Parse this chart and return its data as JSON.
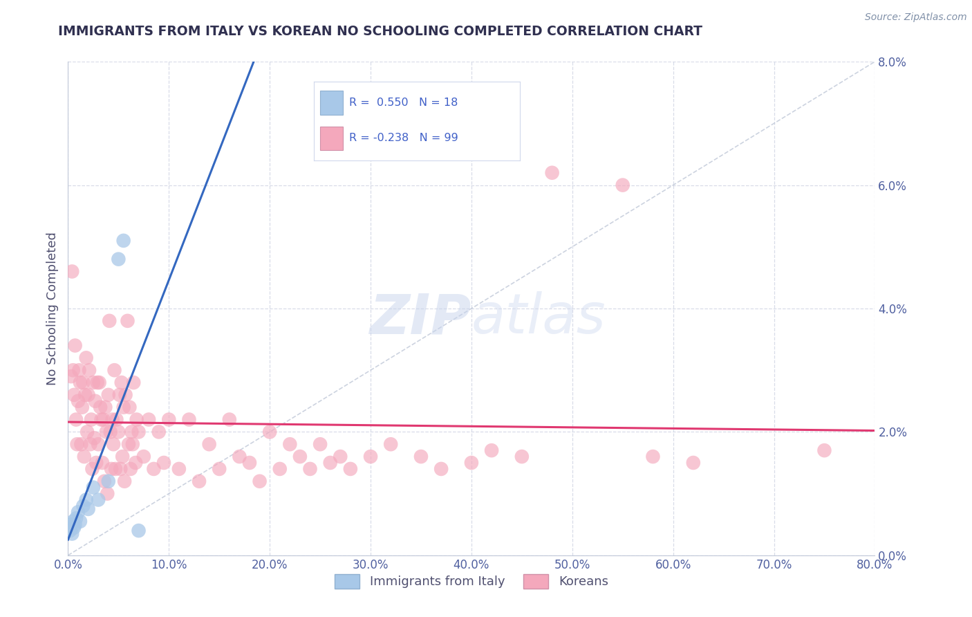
{
  "title": "IMMIGRANTS FROM ITALY VS KOREAN NO SCHOOLING COMPLETED CORRELATION CHART",
  "source": "Source: ZipAtlas.com",
  "xlabel_ticks": [
    0.0,
    10.0,
    20.0,
    30.0,
    40.0,
    50.0,
    60.0,
    70.0,
    80.0
  ],
  "ylabel_ticks": [
    0.0,
    2.0,
    4.0,
    6.0,
    8.0
  ],
  "xlim": [
    0.0,
    80.0
  ],
  "ylim": [
    0.0,
    8.0
  ],
  "ylabel": "No Schooling Completed",
  "legend_italy_label": "Immigrants from Italy",
  "legend_korean_label": "Koreans",
  "italy_R": "0.550",
  "italy_N": "18",
  "korean_R": "-0.238",
  "korean_N": "99",
  "italy_color": "#a8c8e8",
  "korean_color": "#f4a8bc",
  "italy_line_color": "#3468c0",
  "korean_line_color": "#e03870",
  "ref_line_color": "#c0c8d8",
  "background_color": "#ffffff",
  "grid_color": "#d8dce8",
  "title_color": "#303050",
  "watermark_color": "#c8d4ec",
  "italy_scatter": [
    [
      0.2,
      0.4
    ],
    [
      0.3,
      0.5
    ],
    [
      0.4,
      0.35
    ],
    [
      0.5,
      0.55
    ],
    [
      0.6,
      0.45
    ],
    [
      0.7,
      0.5
    ],
    [
      0.8,
      0.6
    ],
    [
      1.0,
      0.7
    ],
    [
      1.2,
      0.55
    ],
    [
      1.5,
      0.8
    ],
    [
      1.8,
      0.9
    ],
    [
      2.0,
      0.75
    ],
    [
      2.5,
      1.1
    ],
    [
      3.0,
      0.9
    ],
    [
      4.0,
      1.2
    ],
    [
      5.0,
      4.8
    ],
    [
      5.5,
      5.1
    ],
    [
      7.0,
      0.4
    ]
  ],
  "korean_scatter": [
    [
      0.3,
      2.9
    ],
    [
      0.4,
      4.6
    ],
    [
      0.5,
      3.0
    ],
    [
      0.6,
      2.6
    ],
    [
      0.7,
      3.4
    ],
    [
      0.8,
      2.2
    ],
    [
      0.9,
      1.8
    ],
    [
      1.0,
      2.5
    ],
    [
      1.1,
      3.0
    ],
    [
      1.2,
      2.8
    ],
    [
      1.3,
      1.8
    ],
    [
      1.4,
      2.4
    ],
    [
      1.5,
      2.8
    ],
    [
      1.6,
      1.6
    ],
    [
      1.7,
      2.6
    ],
    [
      1.8,
      3.2
    ],
    [
      1.9,
      2.0
    ],
    [
      2.0,
      2.6
    ],
    [
      2.1,
      3.0
    ],
    [
      2.2,
      1.8
    ],
    [
      2.3,
      2.2
    ],
    [
      2.4,
      1.4
    ],
    [
      2.5,
      2.8
    ],
    [
      2.6,
      1.9
    ],
    [
      2.7,
      2.5
    ],
    [
      2.8,
      1.5
    ],
    [
      2.9,
      2.8
    ],
    [
      3.0,
      1.8
    ],
    [
      3.1,
      2.8
    ],
    [
      3.2,
      2.4
    ],
    [
      3.3,
      2.2
    ],
    [
      3.4,
      1.5
    ],
    [
      3.5,
      2.2
    ],
    [
      3.6,
      1.2
    ],
    [
      3.7,
      2.4
    ],
    [
      3.8,
      2.0
    ],
    [
      3.9,
      1.0
    ],
    [
      4.0,
      2.6
    ],
    [
      4.1,
      3.8
    ],
    [
      4.2,
      2.0
    ],
    [
      4.3,
      1.4
    ],
    [
      4.4,
      2.2
    ],
    [
      4.5,
      1.8
    ],
    [
      4.6,
      3.0
    ],
    [
      4.7,
      1.4
    ],
    [
      4.8,
      2.2
    ],
    [
      5.0,
      2.0
    ],
    [
      5.1,
      2.6
    ],
    [
      5.2,
      1.4
    ],
    [
      5.3,
      2.8
    ],
    [
      5.4,
      1.6
    ],
    [
      5.5,
      2.4
    ],
    [
      5.6,
      1.2
    ],
    [
      5.7,
      2.6
    ],
    [
      5.9,
      3.8
    ],
    [
      6.0,
      1.8
    ],
    [
      6.1,
      2.4
    ],
    [
      6.2,
      1.4
    ],
    [
      6.3,
      2.0
    ],
    [
      6.4,
      1.8
    ],
    [
      6.5,
      2.8
    ],
    [
      6.7,
      1.5
    ],
    [
      6.8,
      2.2
    ],
    [
      7.0,
      2.0
    ],
    [
      7.5,
      1.6
    ],
    [
      8.0,
      2.2
    ],
    [
      8.5,
      1.4
    ],
    [
      9.0,
      2.0
    ],
    [
      9.5,
      1.5
    ],
    [
      10.0,
      2.2
    ],
    [
      11.0,
      1.4
    ],
    [
      12.0,
      2.2
    ],
    [
      13.0,
      1.2
    ],
    [
      14.0,
      1.8
    ],
    [
      15.0,
      1.4
    ],
    [
      16.0,
      2.2
    ],
    [
      17.0,
      1.6
    ],
    [
      18.0,
      1.5
    ],
    [
      19.0,
      1.2
    ],
    [
      20.0,
      2.0
    ],
    [
      21.0,
      1.4
    ],
    [
      22.0,
      1.8
    ],
    [
      23.0,
      1.6
    ],
    [
      24.0,
      1.4
    ],
    [
      25.0,
      1.8
    ],
    [
      26.0,
      1.5
    ],
    [
      27.0,
      1.6
    ],
    [
      28.0,
      1.4
    ],
    [
      30.0,
      1.6
    ],
    [
      32.0,
      1.8
    ],
    [
      35.0,
      1.6
    ],
    [
      37.0,
      1.4
    ],
    [
      40.0,
      1.5
    ],
    [
      42.0,
      1.7
    ],
    [
      45.0,
      1.6
    ],
    [
      48.0,
      6.2
    ],
    [
      55.0,
      6.0
    ],
    [
      58.0,
      1.6
    ],
    [
      62.0,
      1.5
    ],
    [
      75.0,
      1.7
    ]
  ]
}
